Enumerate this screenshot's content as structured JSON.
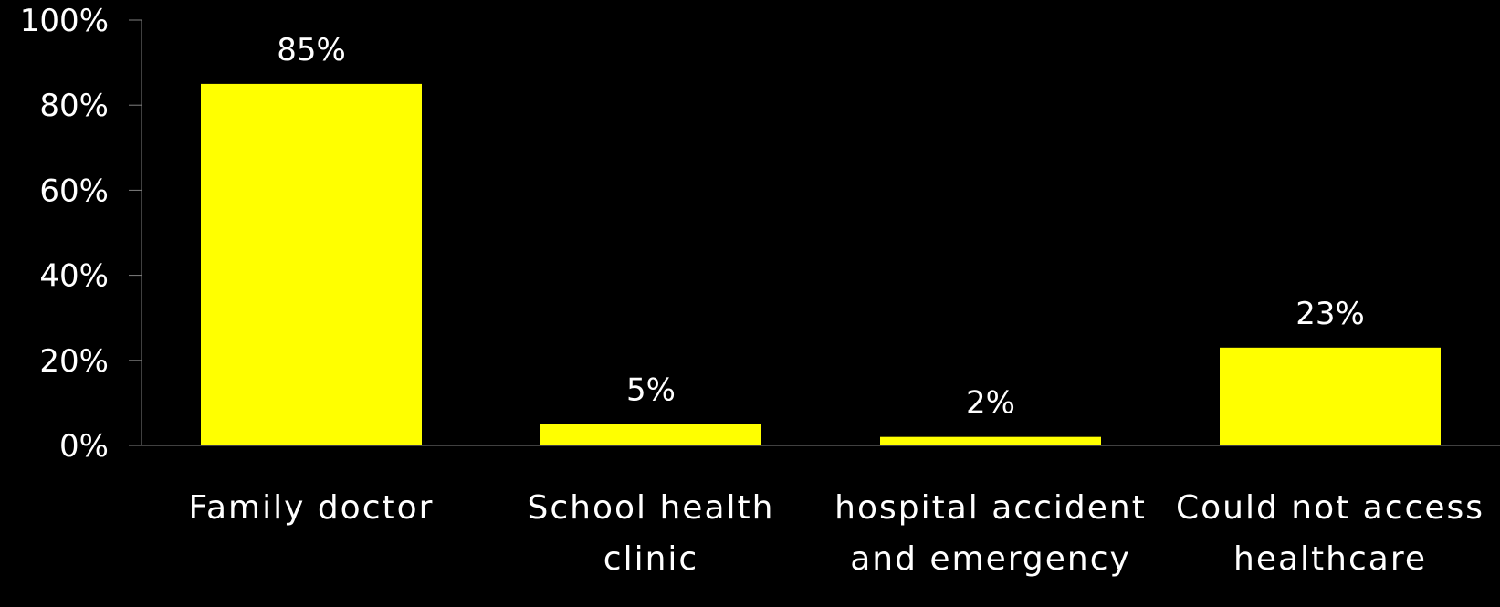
{
  "chart_data": {
    "type": "bar",
    "categories": [
      [
        "Family doctor"
      ],
      [
        "School health",
        "clinic"
      ],
      [
        "hospital accident",
        "and emergency"
      ],
      [
        "Could not access",
        "healthcare"
      ]
    ],
    "values": [
      85,
      5,
      2,
      23
    ],
    "data_labels": [
      "85%",
      "5%",
      "2%",
      "23%"
    ],
    "ylim": [
      0,
      100
    ],
    "yticks": [
      0,
      20,
      40,
      60,
      80,
      100
    ],
    "ytick_labels": [
      "0%",
      "20%",
      "40%",
      "60%",
      "80%",
      "100%"
    ],
    "grid": false,
    "legend": "none",
    "colors": {
      "background": "#000000",
      "bar": "#ffff00",
      "axis": "#808080",
      "text": "#ffffff"
    }
  }
}
